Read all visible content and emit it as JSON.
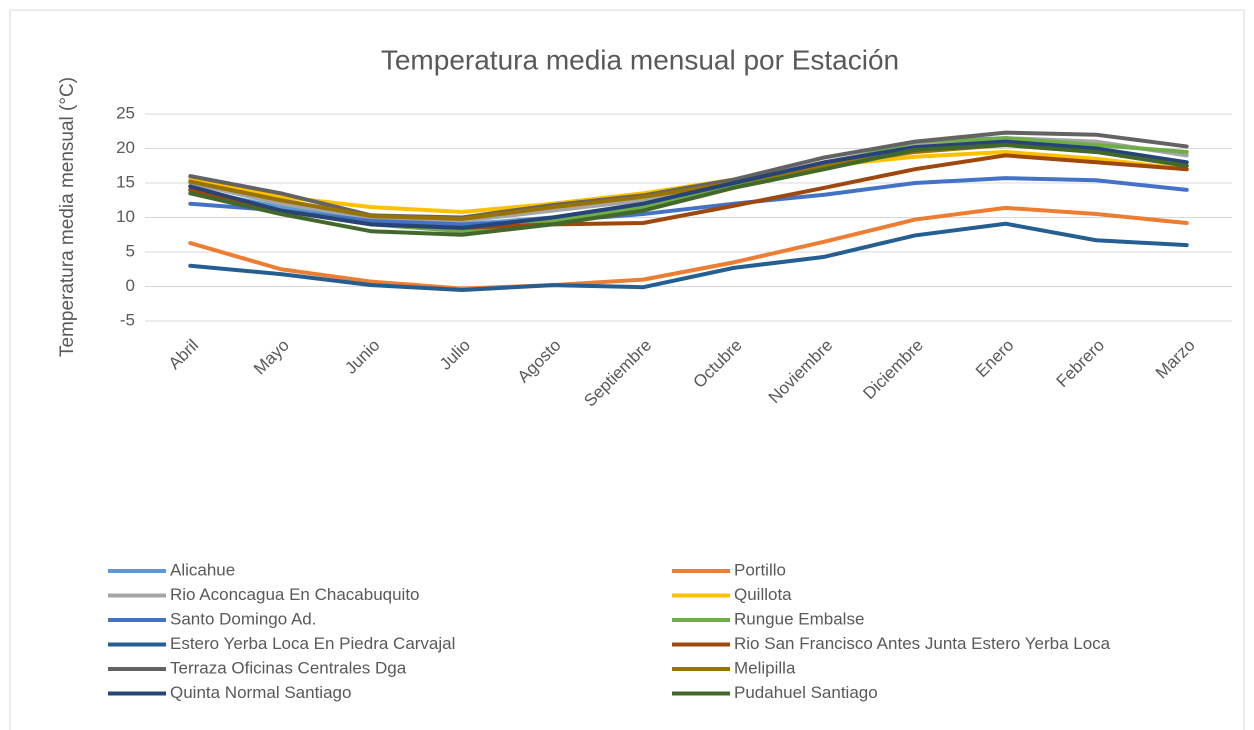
{
  "chart_data": {
    "type": "line",
    "title": "Temperatura media mensual por Estación",
    "y_label": "Temperatura media mensual (°C)",
    "categories": [
      "Abril",
      "Mayo",
      "Junio",
      "Julio",
      "Agosto",
      "Septiembre",
      "Octubre",
      "Noviembre",
      "Diciembre",
      "Enero",
      "Febrero",
      "Marzo"
    ],
    "ylim": [
      -5,
      25
    ],
    "yticks": [
      -5,
      0,
      5,
      10,
      15,
      20,
      25
    ],
    "grid": true,
    "legend": "bottom",
    "series": [
      {
        "name": "Alicahue",
        "color": "#5b9bd5",
        "values": [
          14,
          11.5,
          9.5,
          9,
          10,
          11.5,
          14.5,
          17.5,
          20,
          21,
          20,
          18
        ]
      },
      {
        "name": "Portillo",
        "color": "#ed7d31",
        "values": [
          6.3,
          2.5,
          0.7,
          -0.3,
          0.2,
          1,
          3.5,
          6.5,
          9.7,
          11.4,
          10.5,
          9.2
        ]
      },
      {
        "name": "Rio Aconcagua En Chacabuquito",
        "color": "#a5a5a5",
        "values": [
          15,
          12,
          10,
          9.5,
          11,
          12.5,
          15,
          18,
          20.5,
          21.5,
          21,
          19
        ]
      },
      {
        "name": "Quillota",
        "color": "#ffc000",
        "values": [
          15.5,
          13,
          11.5,
          10.8,
          12,
          13.5,
          15.5,
          17.5,
          18.8,
          19.5,
          18.5,
          17
        ]
      },
      {
        "name": "Santo Domingo Ad.",
        "color": "#4472c4",
        "values": [
          12,
          11,
          9.5,
          9,
          9.5,
          10.5,
          12,
          13.3,
          15,
          15.7,
          15.4,
          14
        ]
      },
      {
        "name": "Rungue Embalse",
        "color": "#70ad47",
        "values": [
          14,
          11,
          9,
          8,
          9.5,
          11.5,
          14.5,
          17.5,
          21,
          21.5,
          20.5,
          19.5
        ]
      },
      {
        "name": "Estero Yerba Loca En Piedra Carvajal",
        "color": "#255e91",
        "values": [
          3,
          1.8,
          0.2,
          -0.5,
          0.2,
          -0.1,
          2.7,
          4.3,
          7.4,
          9.1,
          6.7,
          6
        ]
      },
      {
        "name": "Rio San Francisco Antes Junta Estero Yerba Loca",
        "color": "#9e480e",
        "values": [
          14,
          11,
          9,
          8.5,
          9,
          9.2,
          11.7,
          14.3,
          17,
          19,
          18,
          17
        ]
      },
      {
        "name": "Terraza Oficinas Centrales Dga",
        "color": "#636363",
        "values": [
          16,
          13.5,
          10.3,
          10,
          11.8,
          13.2,
          15.5,
          18.7,
          21,
          22.3,
          22,
          20.3
        ]
      },
      {
        "name": "Melipilla",
        "color": "#997300",
        "values": [
          15.2,
          12.5,
          10.2,
          9.8,
          11.5,
          13,
          15,
          17.5,
          19.5,
          20.5,
          19.5,
          17.5
        ]
      },
      {
        "name": "Quinta Normal Santiago",
        "color": "#264478",
        "values": [
          14.5,
          11,
          9,
          8.5,
          10,
          12,
          15,
          18,
          20.2,
          21,
          20,
          18
        ]
      },
      {
        "name": "Pudahuel Santiago",
        "color": "#43682b",
        "values": [
          13.5,
          10.5,
          8,
          7.5,
          9,
          11,
          14.3,
          17,
          19.8,
          20.5,
          19.5,
          17.5
        ]
      }
    ]
  }
}
